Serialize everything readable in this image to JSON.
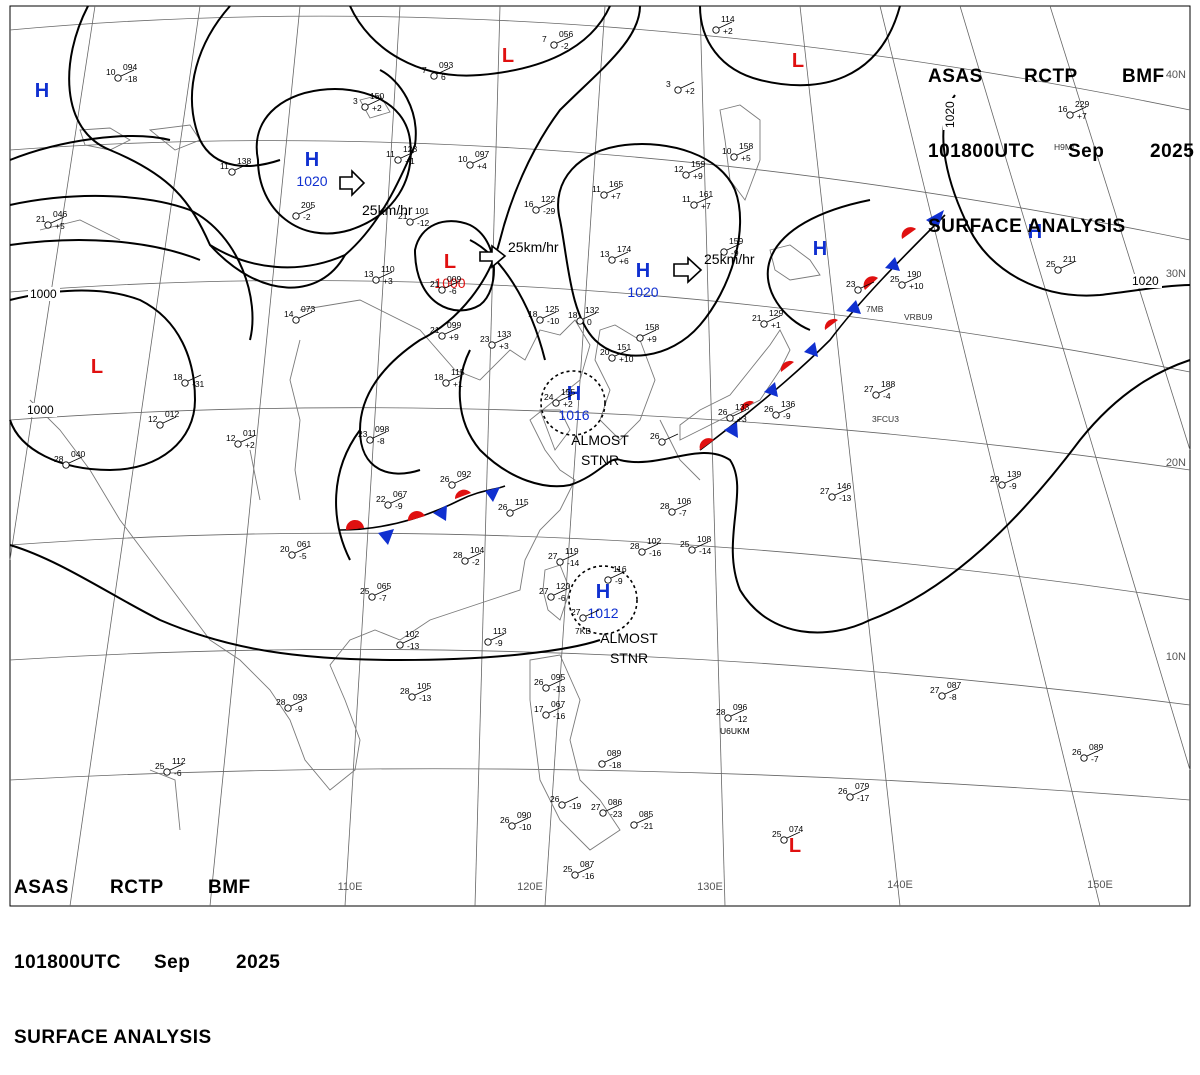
{
  "header": {
    "agency": "ASAS",
    "station": "RCTP",
    "office": "BMF",
    "time": "101800UTC",
    "month": "Sep",
    "year": "2025",
    "product": "SURFACE ANALYSIS"
  },
  "colors": {
    "high": "#1030d0",
    "low": "#e01010",
    "warm_front": "#e01010",
    "cold_front": "#1030d0",
    "ink": "#000000",
    "grid": "#666666",
    "coast": "#7a7a7a"
  },
  "grid_labels": {
    "longitudes": [
      "110E",
      "120E",
      "130E",
      "140E",
      "150E"
    ],
    "latitudes": [
      "40N",
      "30N",
      "20N",
      "10N"
    ]
  },
  "pressure_systems": [
    {
      "type": "H",
      "value": ""
    },
    {
      "type": "H",
      "value": "1020",
      "motion": "25km/hr"
    },
    {
      "type": "L",
      "value": "1000",
      "motion": "25km/hr"
    },
    {
      "type": "H",
      "value": "1020",
      "motion": "25km/hr"
    },
    {
      "type": "L",
      "value": ""
    },
    {
      "type": "L",
      "value": ""
    },
    {
      "type": "H",
      "value": ""
    },
    {
      "type": "H",
      "value": ""
    },
    {
      "type": "L",
      "value": ""
    },
    {
      "type": "H",
      "value": "1016",
      "note": [
        "ALMOST",
        "STNR"
      ]
    },
    {
      "type": "H",
      "value": "1012",
      "note": [
        "ALMOST",
        "STNR"
      ]
    },
    {
      "type": "L",
      "value": ""
    }
  ],
  "isobar_labels": [
    "1000",
    "1000",
    "1020",
    "1020"
  ],
  "stations": [
    {
      "t": "10",
      "p": "094",
      "d": "-18"
    },
    {
      "t": "3",
      "p": "150",
      "d": "+2"
    },
    {
      "t": "7",
      "p": "093",
      "d": "6"
    },
    {
      "t": "7",
      "p": "056",
      "d": "-2"
    },
    {
      "t": "11",
      "p": "138",
      "d": ""
    },
    {
      "t": "11",
      "p": "123",
      "d": "+1"
    },
    {
      "t": "10",
      "p": "097",
      "d": "+4"
    },
    {
      "t": "",
      "p": "205",
      "d": "-2"
    },
    {
      "t": "16",
      "p": "122",
      "d": "-29"
    },
    {
      "t": "11",
      "p": "165",
      "d": "+7"
    },
    {
      "t": "12",
      "p": "159",
      "d": "+9"
    },
    {
      "t": "11",
      "p": "161",
      "d": "+7"
    },
    {
      "t": "3",
      "p": "",
      "d": "+2"
    },
    {
      "t": "10",
      "p": "158",
      "d": "+5"
    },
    {
      "t": "",
      "p": "114",
      "d": "+2"
    },
    {
      "t": "16",
      "p": "229",
      "d": "+7"
    },
    {
      "t": "21",
      "p": "046",
      "d": "+5"
    },
    {
      "t": "13",
      "p": "110",
      "d": "+3"
    },
    {
      "t": "21",
      "p": "009",
      "d": "-6"
    },
    {
      "t": "21",
      "p": "101",
      "d": "-12"
    },
    {
      "t": "13",
      "p": "174",
      "d": "+6"
    },
    {
      "t": "",
      "p": "159",
      "d": "-9"
    },
    {
      "t": "25",
      "p": "211",
      "d": ""
    },
    {
      "t": "25",
      "p": "190",
      "d": "+10"
    },
    {
      "t": "14",
      "p": "073",
      "d": ""
    },
    {
      "t": "21",
      "p": "099",
      "d": "+9"
    },
    {
      "t": "23",
      "p": "133",
      "d": "+3"
    },
    {
      "t": "18",
      "p": "125",
      "d": "-10"
    },
    {
      "t": "18",
      "p": "132",
      "d": "0"
    },
    {
      "t": "",
      "p": "158",
      "d": "+9"
    },
    {
      "t": "21",
      "p": "129",
      "d": "+1"
    },
    {
      "t": "23",
      "p": "",
      "d": ""
    },
    {
      "t": "18",
      "p": "",
      "d": "-31"
    },
    {
      "t": "18",
      "p": "115",
      "d": "+1"
    },
    {
      "t": "20",
      "p": "151",
      "d": "+10"
    },
    {
      "t": "24",
      "p": "155",
      "d": "+2"
    },
    {
      "t": "27",
      "p": "188",
      "d": "-4"
    },
    {
      "t": "12",
      "p": "012",
      "d": ""
    },
    {
      "t": "12",
      "p": "011",
      "d": "+2"
    },
    {
      "t": "23",
      "p": "098",
      "d": "-8"
    },
    {
      "t": "26",
      "p": "",
      "d": ""
    },
    {
      "t": "26",
      "p": "133",
      "d": "+3"
    },
    {
      "t": "26",
      "p": "136",
      "d": "-9"
    },
    {
      "t": "28",
      "p": "040",
      "d": ""
    },
    {
      "t": "26",
      "p": "092",
      "d": ""
    },
    {
      "t": "22",
      "p": "067",
      "d": "-9"
    },
    {
      "t": "26",
      "p": "115",
      "d": ""
    },
    {
      "t": "28",
      "p": "106",
      "d": "-7"
    },
    {
      "t": "27",
      "p": "146",
      "d": "-13"
    },
    {
      "t": "29",
      "p": "139",
      "d": "-9"
    },
    {
      "t": "20",
      "p": "061",
      "d": "-5"
    },
    {
      "t": "28",
      "p": "104",
      "d": "-2"
    },
    {
      "t": "28",
      "p": "102",
      "d": "-16"
    },
    {
      "t": "25",
      "p": "108",
      "d": "-14"
    },
    {
      "t": "27",
      "p": "119",
      "d": "-14"
    },
    {
      "t": "",
      "p": "116",
      "d": "-9"
    },
    {
      "t": "25",
      "p": "065",
      "d": "-7"
    },
    {
      "t": "27",
      "p": "120",
      "d": "-6"
    },
    {
      "t": "27",
      "p": "",
      "d": "",
      "id": "7KB"
    },
    {
      "t": "",
      "p": "102",
      "d": "-13"
    },
    {
      "t": "",
      "p": "113",
      "d": "-9"
    },
    {
      "t": "26",
      "p": "095",
      "d": "-13"
    },
    {
      "t": "28",
      "p": "093",
      "d": "-9"
    },
    {
      "t": "28",
      "p": "105",
      "d": "-13"
    },
    {
      "t": "17",
      "p": "067",
      "d": "-16"
    },
    {
      "t": "28",
      "p": "096",
      "d": "-12",
      "id": "U6UKM"
    },
    {
      "t": "27",
      "p": "087",
      "d": "-8"
    },
    {
      "t": "25",
      "p": "112",
      "d": "-6"
    },
    {
      "t": "",
      "p": "089",
      "d": "-18"
    },
    {
      "t": "26",
      "p": "089",
      "d": "-7"
    },
    {
      "t": "26",
      "p": "079",
      "d": "-17"
    },
    {
      "t": "26",
      "p": "",
      "d": "-19"
    },
    {
      "t": "27",
      "p": "086",
      "d": "-23"
    },
    {
      "t": "",
      "p": "085",
      "d": "-21"
    },
    {
      "t": "26",
      "p": "090",
      "d": "-10"
    },
    {
      "t": "25",
      "p": "087",
      "d": "-16"
    },
    {
      "t": "25",
      "p": "074",
      "d": ""
    }
  ],
  "ship_ids": [
    "H9ML",
    "7MB",
    "VRBU9",
    "3FCU3"
  ]
}
